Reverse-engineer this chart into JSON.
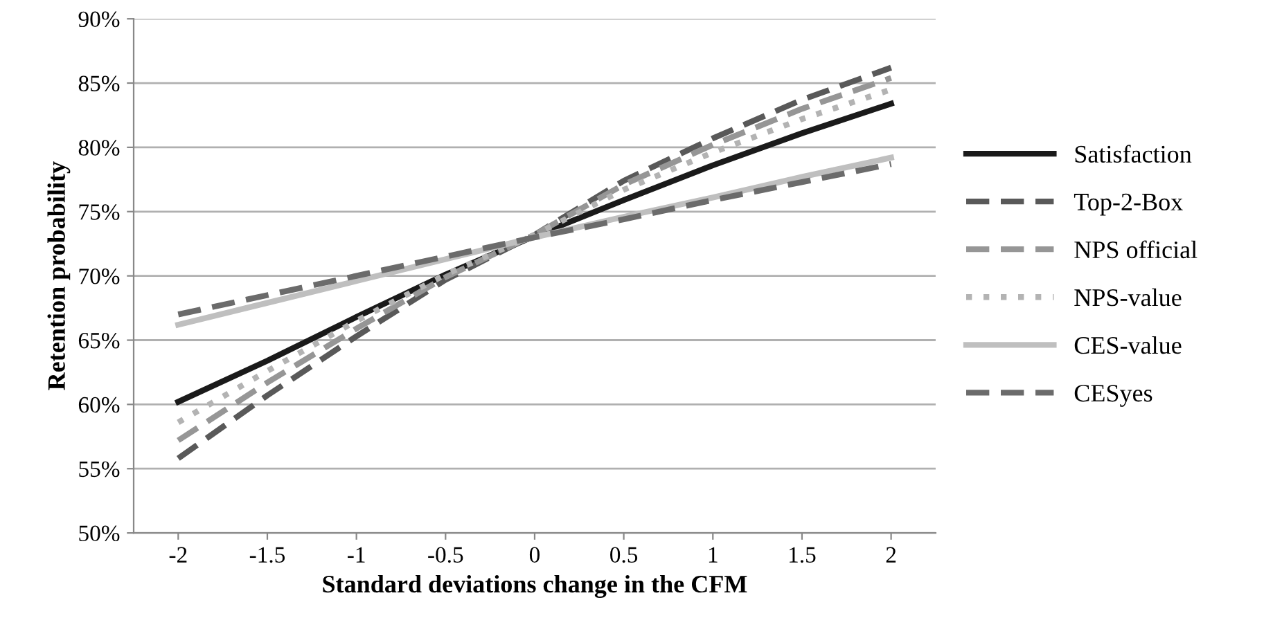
{
  "chart_data": {
    "type": "line",
    "xlabel": "Standard deviations change in the CFM",
    "ylabel": "Retention probability",
    "categories": [
      "-2",
      "-1.5",
      "-1",
      "-0.5",
      "0",
      "0.5",
      "1",
      "1.5",
      "2"
    ],
    "ylim": [
      50,
      90
    ],
    "yticks": [
      {
        "value": 50,
        "label": "50%"
      },
      {
        "value": 55,
        "label": "55%"
      },
      {
        "value": 60,
        "label": "60%"
      },
      {
        "value": 65,
        "label": "65%"
      },
      {
        "value": 70,
        "label": "70%"
      },
      {
        "value": 75,
        "label": "75%"
      },
      {
        "value": 80,
        "label": "80%"
      },
      {
        "value": 85,
        "label": "85%"
      },
      {
        "value": 90,
        "label": "90%"
      }
    ],
    "grid": "y",
    "legend": "right",
    "marker": "none",
    "series": [
      {
        "name": "Satisfaction",
        "color": "#1a1a1a",
        "line_style": "solid",
        "values": [
          60.2,
          63.4,
          66.8,
          70.1,
          73.1,
          75.9,
          78.6,
          81.1,
          83.4
        ]
      },
      {
        "name": "Top-2-Box",
        "color": "#595959",
        "line_style": "dashed",
        "values": [
          55.8,
          60.7,
          65.3,
          69.7,
          73.2,
          77.4,
          80.7,
          83.7,
          86.2
        ]
      },
      {
        "name": "NPS official",
        "color": "#969696",
        "line_style": "dashed",
        "values": [
          57.2,
          61.7,
          65.9,
          69.9,
          73.2,
          77.1,
          80.2,
          83.0,
          85.4
        ]
      },
      {
        "name": "NPS-value",
        "color": "#b3b3b3",
        "line_style": "dotted",
        "values": [
          58.6,
          62.6,
          66.5,
          70.1,
          73.2,
          76.7,
          79.6,
          82.2,
          84.5
        ]
      },
      {
        "name": "CES-value",
        "color": "#bfbfbf",
        "line_style": "solid",
        "values": [
          66.2,
          67.9,
          69.6,
          71.3,
          73.0,
          74.6,
          76.1,
          77.7,
          79.2
        ]
      },
      {
        "name": "CESyes",
        "color": "#6b6b6b",
        "line_style": "dashed",
        "values": [
          67.0,
          68.5,
          70.0,
          71.5,
          73.0,
          74.4,
          75.9,
          77.3,
          78.7
        ]
      }
    ]
  }
}
